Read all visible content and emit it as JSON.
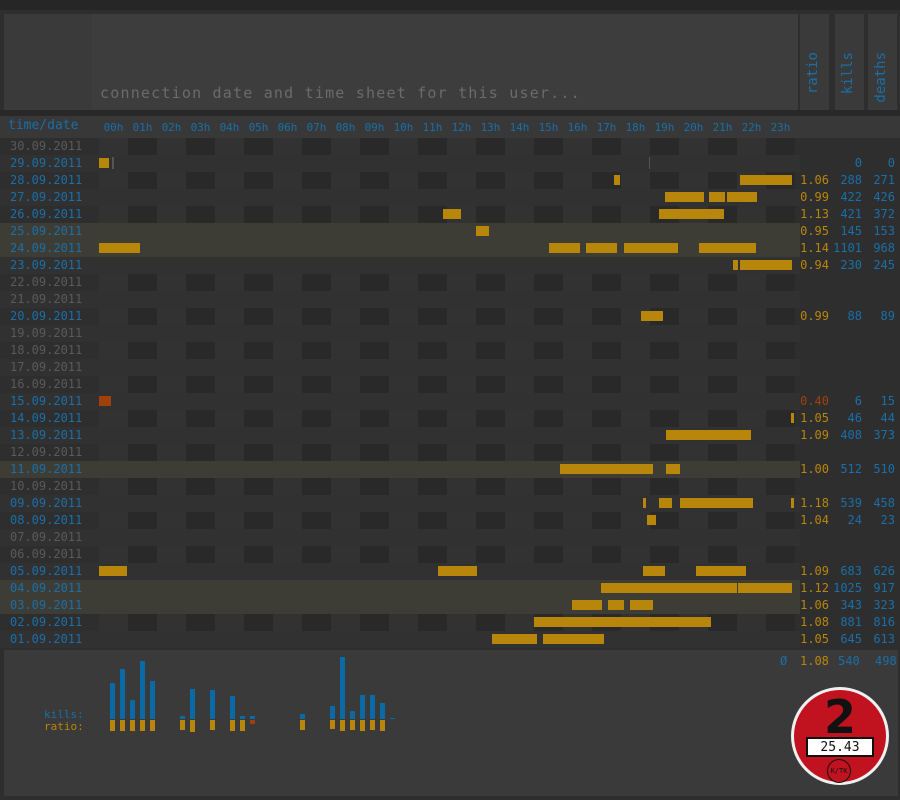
{
  "header": {
    "title": "connection date and time sheet for this user...",
    "time_date_label": "time/date",
    "stat_labels": [
      "ratio",
      "kills",
      "deaths"
    ]
  },
  "hours": [
    "00h",
    "01h",
    "02h",
    "03h",
    "04h",
    "05h",
    "06h",
    "07h",
    "08h",
    "09h",
    "10h",
    "11h",
    "12h",
    "13h",
    "14h",
    "15h",
    "16h",
    "17h",
    "18h",
    "19h",
    "20h",
    "21h",
    "22h",
    "23h"
  ],
  "rows": [
    {
      "date": "30.09.2011",
      "active": false,
      "ratio": "",
      "kills": "",
      "deaths": "",
      "bars": []
    },
    {
      "date": "29.09.2011",
      "active": true,
      "ratio": "",
      "kills": "0",
      "deaths": "0",
      "bars": [
        [
          0.0,
          0.35
        ]
      ]
    },
    {
      "date": "28.09.2011",
      "active": true,
      "ratio": "1.06",
      "kills": "288",
      "deaths": "271",
      "bars": [
        [
          17.75,
          17.95
        ],
        [
          22.1,
          23.9
        ]
      ]
    },
    {
      "date": "27.09.2011",
      "active": true,
      "ratio": "0.99",
      "kills": "422",
      "deaths": "426",
      "bars": [
        [
          19.5,
          20.85
        ],
        [
          21.05,
          21.6
        ],
        [
          21.65,
          22.7
        ]
      ]
    },
    {
      "date": "26.09.2011",
      "active": true,
      "ratio": "1.13",
      "kills": "421",
      "deaths": "372",
      "bars": [
        [
          11.85,
          12.5
        ],
        [
          19.3,
          21.55
        ]
      ]
    },
    {
      "date": "25.09.2011",
      "active": true,
      "ratio": "0.95",
      "kills": "145",
      "deaths": "153",
      "bars": [
        [
          13.0,
          13.45
        ]
      ]
    },
    {
      "date": "24.09.2011",
      "active": true,
      "ratio": "1.14",
      "kills": "1101",
      "deaths": "968",
      "bars": [
        [
          0.0,
          1.4
        ],
        [
          15.5,
          16.6
        ],
        [
          16.8,
          17.85
        ],
        [
          18.1,
          19.95
        ],
        [
          20.7,
          22.65
        ]
      ]
    },
    {
      "date": "23.09.2011",
      "active": true,
      "ratio": "0.94",
      "kills": "230",
      "deaths": "245",
      "bars": [
        [
          21.85,
          22.05
        ],
        [
          22.1,
          23.9
        ]
      ]
    },
    {
      "date": "22.09.2011",
      "active": false,
      "ratio": "",
      "kills": "",
      "deaths": "",
      "bars": []
    },
    {
      "date": "21.09.2011",
      "active": false,
      "ratio": "",
      "kills": "",
      "deaths": "",
      "bars": []
    },
    {
      "date": "20.09.2011",
      "active": true,
      "ratio": "0.99",
      "kills": "88",
      "deaths": "89",
      "bars": [
        [
          18.7,
          19.45
        ]
      ]
    },
    {
      "date": "19.09.2011",
      "active": false,
      "ratio": "",
      "kills": "",
      "deaths": "",
      "bars": []
    },
    {
      "date": "18.09.2011",
      "active": false,
      "ratio": "",
      "kills": "",
      "deaths": "",
      "bars": []
    },
    {
      "date": "17.09.2011",
      "active": false,
      "ratio": "",
      "kills": "",
      "deaths": "",
      "bars": []
    },
    {
      "date": "16.09.2011",
      "active": false,
      "ratio": "",
      "kills": "",
      "deaths": "",
      "bars": []
    },
    {
      "date": "15.09.2011",
      "active": true,
      "ratio": "0.40",
      "kills": "6",
      "deaths": "15",
      "bars": [
        [
          0.0,
          0.4
        ]
      ],
      "red": true
    },
    {
      "date": "14.09.2011",
      "active": true,
      "ratio": "1.05",
      "kills": "46",
      "deaths": "44",
      "bars": [
        [
          23.85,
          23.95
        ]
      ]
    },
    {
      "date": "13.09.2011",
      "active": true,
      "ratio": "1.09",
      "kills": "408",
      "deaths": "373",
      "bars": [
        [
          19.55,
          22.5
        ]
      ]
    },
    {
      "date": "12.09.2011",
      "active": false,
      "ratio": "",
      "kills": "",
      "deaths": "",
      "bars": []
    },
    {
      "date": "11.09.2011",
      "active": true,
      "ratio": "1.00",
      "kills": "512",
      "deaths": "510",
      "bars": [
        [
          15.9,
          19.1
        ],
        [
          19.55,
          20.05
        ]
      ]
    },
    {
      "date": "10.09.2011",
      "active": false,
      "ratio": "",
      "kills": "",
      "deaths": "",
      "bars": []
    },
    {
      "date": "09.09.2011",
      "active": true,
      "ratio": "1.18",
      "kills": "539",
      "deaths": "458",
      "bars": [
        [
          18.75,
          18.85
        ],
        [
          19.3,
          19.75
        ],
        [
          20.05,
          22.55
        ],
        [
          23.85,
          23.95
        ]
      ]
    },
    {
      "date": "08.09.2011",
      "active": true,
      "ratio": "1.04",
      "kills": "24",
      "deaths": "23",
      "bars": [
        [
          18.9,
          19.2
        ]
      ]
    },
    {
      "date": "07.09.2011",
      "active": false,
      "ratio": "",
      "kills": "",
      "deaths": "",
      "bars": []
    },
    {
      "date": "06.09.2011",
      "active": false,
      "ratio": "",
      "kills": "",
      "deaths": "",
      "bars": []
    },
    {
      "date": "05.09.2011",
      "active": true,
      "ratio": "1.09",
      "kills": "683",
      "deaths": "626",
      "bars": [
        [
          0.0,
          0.95
        ],
        [
          11.7,
          13.05
        ],
        [
          18.75,
          19.5
        ],
        [
          20.6,
          22.3
        ]
      ]
    },
    {
      "date": "04.09.2011",
      "active": true,
      "ratio": "1.12",
      "kills": "1025",
      "deaths": "917",
      "bars": [
        [
          17.3,
          22.0
        ],
        [
          22.05,
          23.9
        ]
      ]
    },
    {
      "date": "03.09.2011",
      "active": true,
      "ratio": "1.06",
      "kills": "343",
      "deaths": "323",
      "bars": [
        [
          16.3,
          17.35
        ],
        [
          17.55,
          18.1
        ],
        [
          18.3,
          19.1
        ]
      ]
    },
    {
      "date": "02.09.2011",
      "active": true,
      "ratio": "1.08",
      "kills": "881",
      "deaths": "816",
      "bars": [
        [
          15.0,
          21.1
        ]
      ]
    },
    {
      "date": "01.09.2011",
      "active": true,
      "ratio": "1.05",
      "kills": "645",
      "deaths": "613",
      "bars": [
        [
          13.55,
          15.1
        ],
        [
          15.3,
          17.4
        ]
      ]
    }
  ],
  "footer": {
    "kills_label": "kills:",
    "ratio_label": "ratio:",
    "avg_symbol": "Ø",
    "avg_ratio": "1.08",
    "avg_kills": "540",
    "avg_deaths": "498"
  },
  "badge": {
    "rank": "2",
    "value": "25.43",
    "unit": "K/TK"
  },
  "colors": {
    "accent_blue": "#1a6fa8",
    "bar_gold": "#b8860b",
    "low_ratio": "#a0400b"
  }
}
